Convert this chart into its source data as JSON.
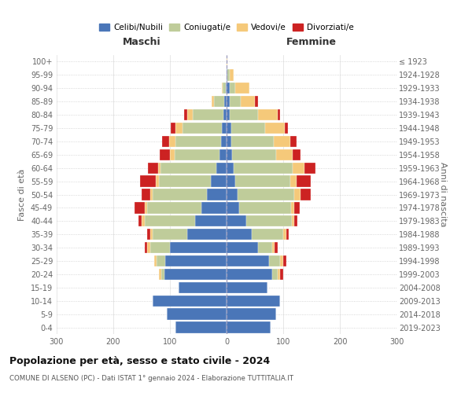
{
  "age_groups": [
    "0-4",
    "5-9",
    "10-14",
    "15-19",
    "20-24",
    "25-29",
    "30-34",
    "35-39",
    "40-44",
    "45-49",
    "50-54",
    "55-59",
    "60-64",
    "65-69",
    "70-74",
    "75-79",
    "80-84",
    "85-89",
    "90-94",
    "95-99",
    "100+"
  ],
  "birth_years": [
    "2019-2023",
    "2014-2018",
    "2009-2013",
    "2004-2008",
    "1999-2003",
    "1994-1998",
    "1989-1993",
    "1984-1988",
    "1979-1983",
    "1974-1978",
    "1969-1973",
    "1964-1968",
    "1959-1963",
    "1954-1958",
    "1949-1953",
    "1944-1948",
    "1939-1943",
    "1934-1938",
    "1929-1933",
    "1924-1928",
    "≤ 1923"
  ],
  "colors": {
    "celibe": "#4a76b8",
    "coniugato": "#bfcc9a",
    "vedovo": "#f5c97a",
    "divorziato": "#cc2222"
  },
  "maschi": {
    "celibe": [
      90,
      105,
      130,
      85,
      110,
      108,
      100,
      70,
      55,
      45,
      35,
      28,
      18,
      12,
      10,
      8,
      5,
      4,
      2,
      0,
      0
    ],
    "coniugato": [
      0,
      0,
      0,
      0,
      5,
      15,
      35,
      60,
      90,
      95,
      95,
      92,
      98,
      80,
      80,
      70,
      55,
      18,
      5,
      0,
      0
    ],
    "vedovo": [
      0,
      0,
      0,
      0,
      5,
      5,
      5,
      5,
      5,
      5,
      5,
      5,
      5,
      8,
      12,
      12,
      10,
      5,
      2,
      0,
      0
    ],
    "divorziato": [
      0,
      0,
      0,
      0,
      0,
      0,
      5,
      5,
      5,
      18,
      15,
      28,
      18,
      18,
      12,
      8,
      5,
      0,
      0,
      0,
      0
    ]
  },
  "femmine": {
    "nubile": [
      78,
      88,
      95,
      72,
      80,
      75,
      55,
      45,
      35,
      22,
      20,
      15,
      12,
      10,
      8,
      8,
      5,
      5,
      5,
      2,
      0
    ],
    "coniugata": [
      0,
      0,
      0,
      0,
      10,
      20,
      25,
      55,
      80,
      92,
      100,
      98,
      105,
      78,
      75,
      60,
      50,
      20,
      10,
      3,
      0
    ],
    "vedova": [
      0,
      0,
      0,
      0,
      5,
      5,
      5,
      5,
      5,
      5,
      10,
      10,
      20,
      28,
      30,
      35,
      35,
      25,
      25,
      8,
      2
    ],
    "divorziata": [
      0,
      0,
      0,
      0,
      5,
      5,
      5,
      5,
      5,
      10,
      18,
      25,
      20,
      15,
      10,
      5,
      5,
      5,
      0,
      0,
      0
    ]
  },
  "title": "Popolazione per età, sesso e stato civile - 2024",
  "subtitle": "COMUNE DI ALSENO (PC) - Dati ISTAT 1° gennaio 2024 - Elaborazione TUTTITALIA.IT",
  "xlabel_left": "Maschi",
  "xlabel_right": "Femmine",
  "ylabel": "Fasce di età",
  "ylabel_right": "Anni di nascita",
  "xlim": 300,
  "legend_labels": [
    "Celibi/Nubili",
    "Coniugati/e",
    "Vedovi/e",
    "Divorziati/e"
  ]
}
